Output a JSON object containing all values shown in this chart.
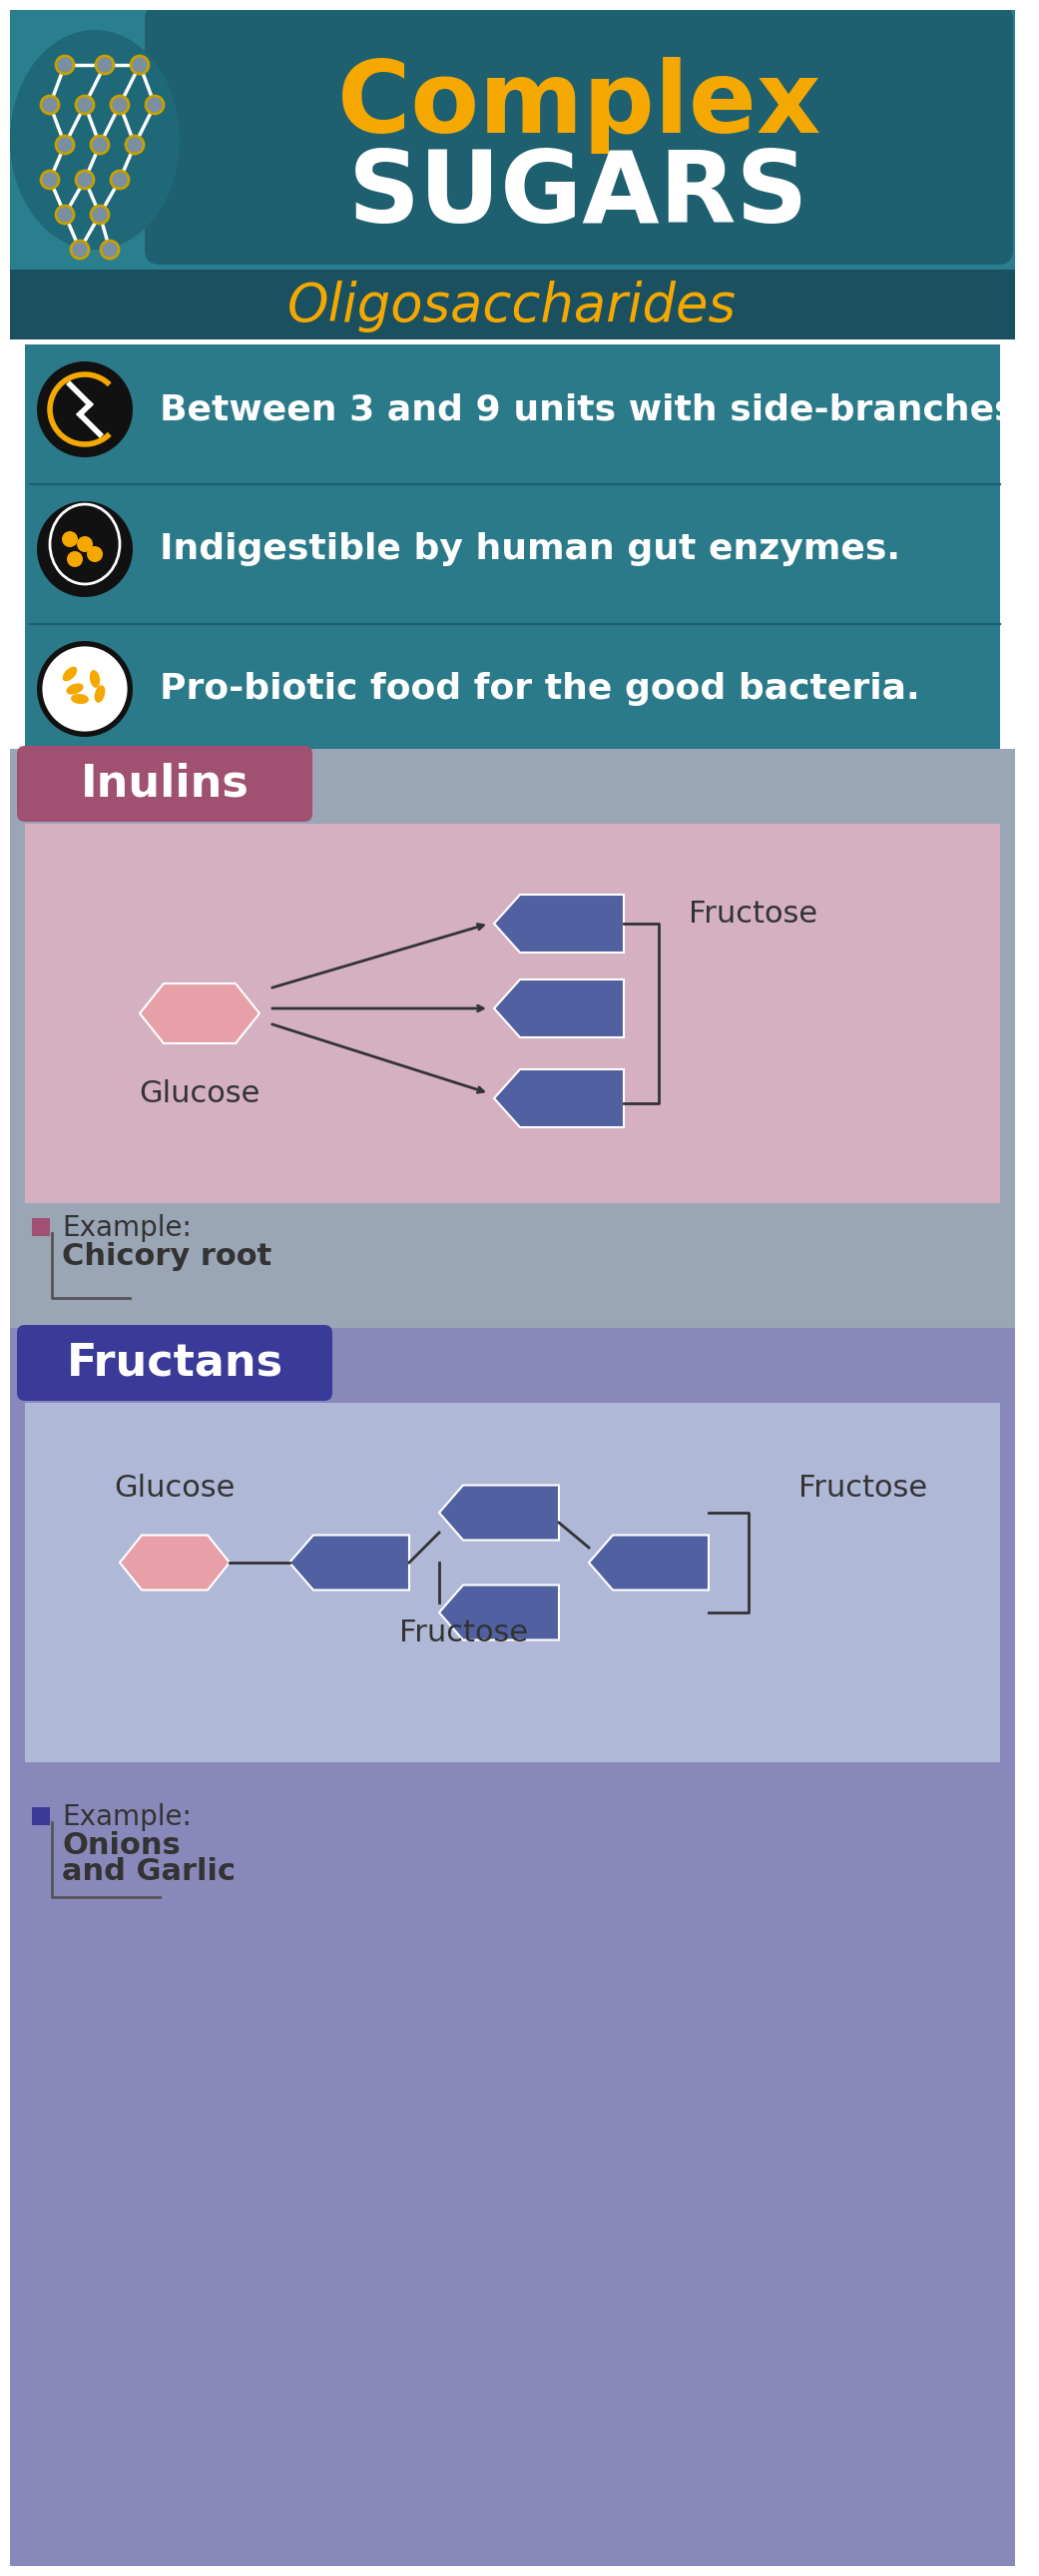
{
  "title_complex": "Complex",
  "title_sugars": "SUGARS",
  "subtitle": "Oligosaccharides",
  "bg_header": "#2a7f8f",
  "bg_subtitle": "#1a5f6f",
  "bg_facts": "#2a7f8f",
  "bg_inulins_section": "#b0b8cc",
  "bg_inulins_diagram": "#d0afc0",
  "bg_fructans_section": "#9090bb",
  "bg_fructans_diagram": "#a8b0d0",
  "inulins_label_color": "#b05070",
  "fructans_label_color": "#4040aa",
  "title_complex_color": "#f5a800",
  "title_sugars_color": "#ffffff",
  "subtitle_color": "#f5a800",
  "fact_text_color": "#ffffff",
  "facts": [
    "Between 3 and 9 units with side-branches.",
    "Indigestible by human gut enzymes.",
    "Pro-biotic food for the good bacteria."
  ],
  "inulins_title": "Inulins",
  "fructans_title": "Fructans",
  "glucose_color": "#e8a0a8",
  "fructose_color": "#5060a0",
  "fructose_light_color": "#7080b8",
  "example_inulins": "Chicory root",
  "example_fructans": "Onions\nand Garlic",
  "inulins_shape_color": "#e8a0a8",
  "connector_color": "#333333"
}
